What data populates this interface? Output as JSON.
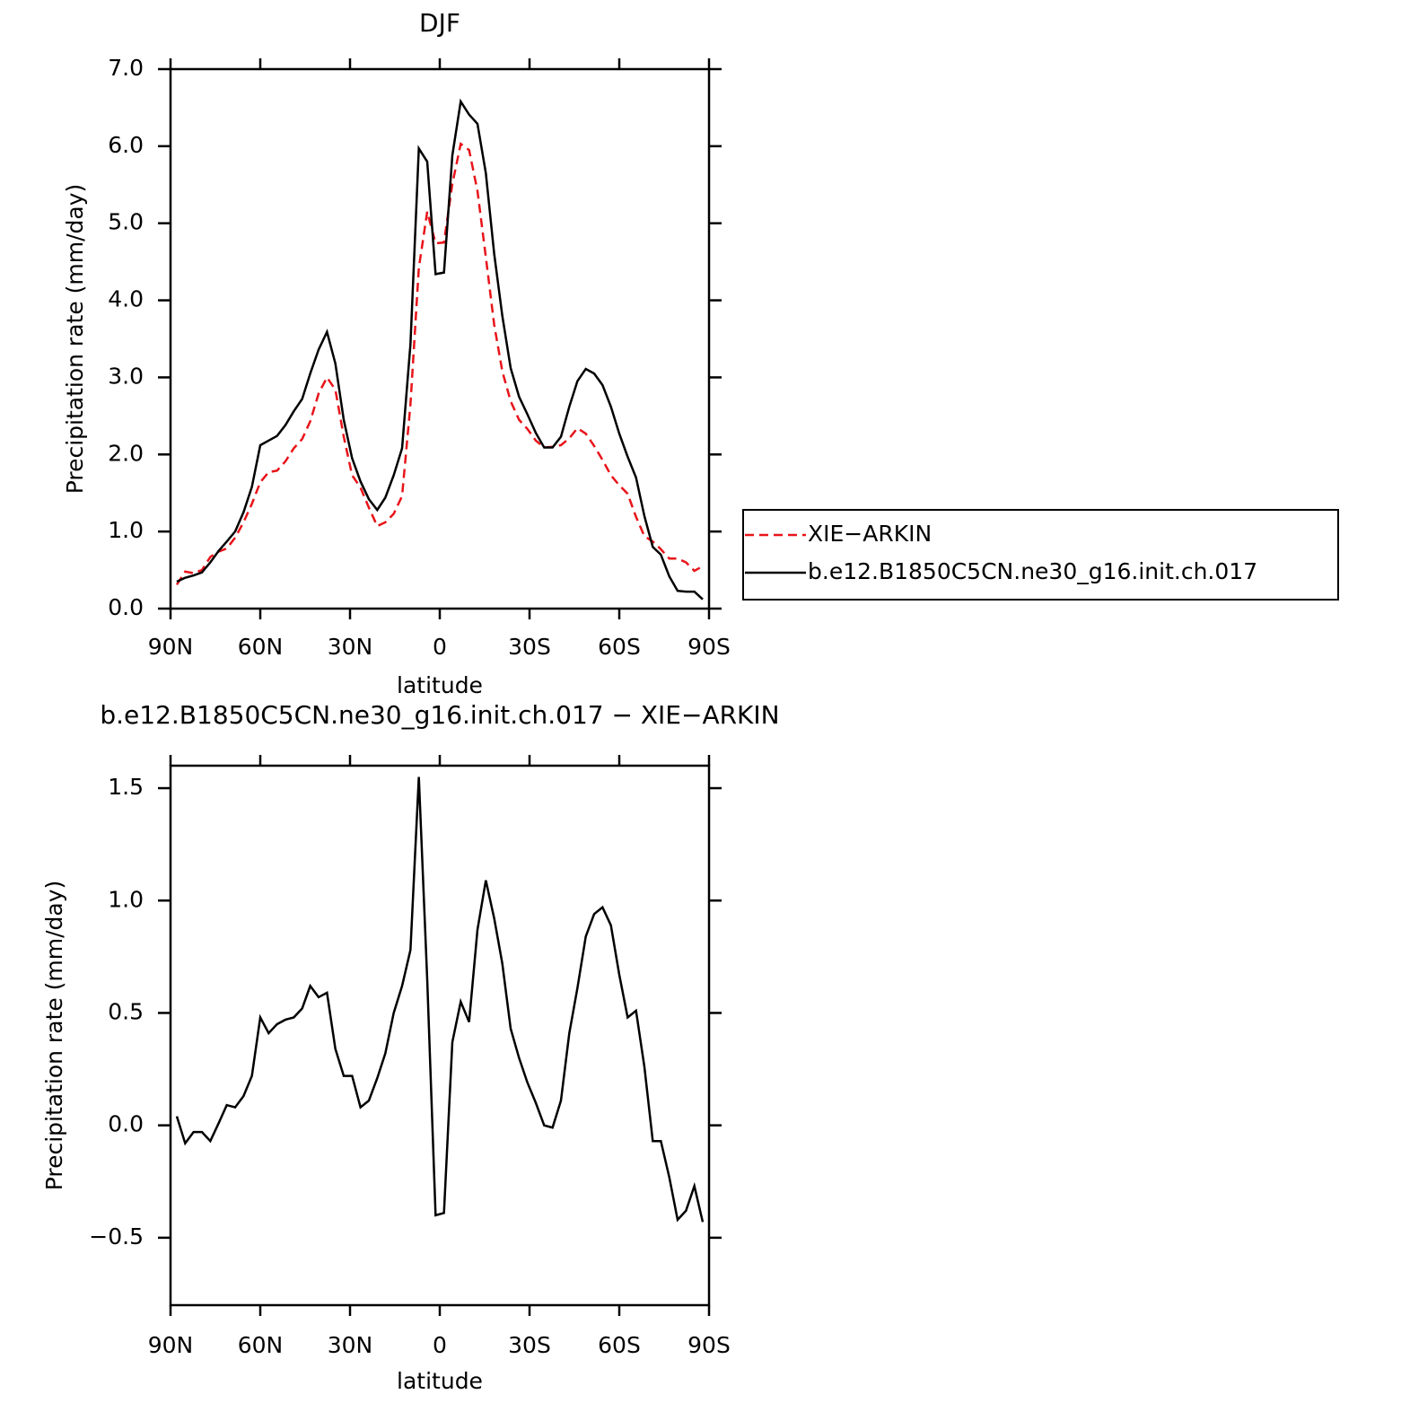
{
  "chart_data": [
    {
      "type": "line",
      "title": "DJF",
      "xlabel": "latitude",
      "ylabel": "Precipitation rate (mm/day)",
      "x": [
        87.9,
        85.1,
        82.3,
        79.5,
        76.7,
        73.9,
        71.2,
        68.4,
        65.6,
        62.8,
        60.0,
        57.2,
        54.4,
        51.6,
        48.8,
        46.0,
        43.3,
        40.5,
        37.7,
        34.9,
        32.1,
        29.3,
        26.5,
        23.7,
        20.9,
        18.2,
        15.4,
        12.6,
        9.8,
        7.0,
        4.2,
        1.4,
        -1.4,
        -4.2,
        -7.0,
        -9.8,
        -12.6,
        -15.4,
        -18.2,
        -20.9,
        -23.7,
        -26.5,
        -29.3,
        -32.1,
        -34.9,
        -37.7,
        -40.5,
        -43.3,
        -46.0,
        -48.8,
        -51.6,
        -54.4,
        -57.2,
        -60.0,
        -62.8,
        -65.6,
        -68.4,
        -71.2,
        -73.9,
        -76.7,
        -79.5,
        -82.3,
        -85.1,
        -87.9
      ],
      "series": [
        {
          "name": "XIE−ARKIN",
          "color": "#e8141a",
          "linestyle": "dashed",
          "values": [
            0.31,
            0.48,
            0.46,
            0.5,
            0.67,
            0.74,
            0.78,
            0.92,
            1.12,
            1.36,
            1.64,
            1.77,
            1.79,
            1.91,
            2.08,
            2.2,
            2.43,
            2.79,
            3.0,
            2.84,
            2.23,
            1.73,
            1.57,
            1.31,
            1.07,
            1.12,
            1.23,
            1.46,
            2.65,
            4.42,
            5.15,
            4.74,
            4.75,
            5.51,
            6.03,
            5.95,
            5.42,
            4.56,
            3.68,
            3.08,
            2.69,
            2.45,
            2.33,
            2.18,
            2.09,
            2.1,
            2.12,
            2.21,
            2.34,
            2.27,
            2.11,
            1.93,
            1.73,
            1.6,
            1.49,
            1.19,
            0.94,
            0.87,
            0.77,
            0.65,
            0.65,
            0.6,
            0.49,
            0.55
          ]
        },
        {
          "name": "b.e12.B1850C5CN.ne30_g16.init.ch.017",
          "color": "#000000",
          "linestyle": "solid",
          "values": [
            0.35,
            0.4,
            0.43,
            0.47,
            0.6,
            0.75,
            0.87,
            1.0,
            1.25,
            1.58,
            2.12,
            2.18,
            2.24,
            2.38,
            2.56,
            2.72,
            3.05,
            3.36,
            3.59,
            3.18,
            2.45,
            1.95,
            1.65,
            1.42,
            1.28,
            1.44,
            1.73,
            2.08,
            3.43,
            5.97,
            5.8,
            4.34,
            4.36,
            5.88,
            6.58,
            6.41,
            6.29,
            5.65,
            4.6,
            3.8,
            3.12,
            2.75,
            2.52,
            2.28,
            2.09,
            2.09,
            2.23,
            2.62,
            2.95,
            3.11,
            3.05,
            2.9,
            2.62,
            2.27,
            1.97,
            1.7,
            1.2,
            0.8,
            0.7,
            0.42,
            0.23,
            0.22,
            0.22,
            0.12
          ]
        }
      ],
      "xlim": [
        90,
        -90
      ],
      "xticks": [
        {
          "value": 90,
          "label": "90N"
        },
        {
          "value": 60,
          "label": "60N"
        },
        {
          "value": 30,
          "label": "30N"
        },
        0,
        {
          "value": -30,
          "label": "30S"
        },
        {
          "value": -60,
          "label": "60S"
        },
        {
          "value": -90,
          "label": "90S"
        }
      ],
      "ylim": [
        0,
        7
      ],
      "yticks": [
        {
          "value": 0,
          "label": "0.0"
        },
        {
          "value": 1,
          "label": "1.0"
        },
        {
          "value": 2,
          "label": "2.0"
        },
        {
          "value": 3,
          "label": "3.0"
        },
        {
          "value": 4,
          "label": "4.0"
        },
        {
          "value": 5,
          "label": "5.0"
        },
        {
          "value": 6,
          "label": "6.0"
        },
        {
          "value": 7,
          "label": "7.0"
        }
      ],
      "legend": "right"
    },
    {
      "type": "line",
      "title": "b.e12.B1850C5CN.ne30_g16.init.ch.017 − XIE−ARKIN",
      "xlabel": "latitude",
      "ylabel": "Precipitation rate (mm/day)",
      "x": [
        87.9,
        85.1,
        82.3,
        79.5,
        76.7,
        73.9,
        71.2,
        68.4,
        65.6,
        62.8,
        60.0,
        57.2,
        54.4,
        51.6,
        48.8,
        46.0,
        43.3,
        40.5,
        37.7,
        34.9,
        32.1,
        29.3,
        26.5,
        23.7,
        20.9,
        18.2,
        15.4,
        12.6,
        9.8,
        7.0,
        4.2,
        1.4,
        -1.4,
        -4.2,
        -7.0,
        -9.8,
        -12.6,
        -15.4,
        -18.2,
        -20.9,
        -23.7,
        -26.5,
        -29.3,
        -32.1,
        -34.9,
        -37.7,
        -40.5,
        -43.3,
        -46.0,
        -48.8,
        -51.6,
        -54.4,
        -57.2,
        -60.0,
        -62.8,
        -65.6,
        -68.4,
        -71.2,
        -73.9,
        -76.7,
        -79.5,
        -82.3,
        -85.1,
        -87.9
      ],
      "series": [
        {
          "color": "#000000",
          "linestyle": "solid",
          "values": [
            0.04,
            -0.08,
            -0.03,
            -0.03,
            -0.07,
            0.01,
            0.09,
            0.08,
            0.13,
            0.22,
            0.48,
            0.41,
            0.45,
            0.47,
            0.48,
            0.52,
            0.62,
            0.57,
            0.59,
            0.34,
            0.22,
            0.22,
            0.08,
            0.11,
            0.21,
            0.32,
            0.5,
            0.62,
            0.78,
            1.55,
            0.65,
            -0.4,
            -0.39,
            0.37,
            0.55,
            0.46,
            0.87,
            1.09,
            0.92,
            0.72,
            0.43,
            0.3,
            0.19,
            0.1,
            0,
            -0.01,
            0.11,
            0.41,
            0.61,
            0.84,
            0.94,
            0.97,
            0.89,
            0.67,
            0.48,
            0.51,
            0.26,
            -0.07,
            -0.07,
            -0.23,
            -0.42,
            -0.38,
            -0.27,
            -0.43
          ]
        }
      ],
      "xlim": [
        90,
        -90
      ],
      "xticks": [
        {
          "value": 90,
          "label": "90N"
        },
        {
          "value": 60,
          "label": "60N"
        },
        {
          "value": 30,
          "label": "30N"
        },
        0,
        {
          "value": -30,
          "label": "30S"
        },
        {
          "value": -60,
          "label": "60S"
        },
        {
          "value": -90,
          "label": "90S"
        }
      ],
      "ylim": [
        -0.8,
        1.6
      ],
      "yticks": [
        {
          "value": -0.5,
          "label": "−0.5"
        },
        {
          "value": 0,
          "label": "0.0"
        },
        0.5,
        {
          "value": 1,
          "label": "1.0"
        },
        1.5
      ]
    }
  ]
}
